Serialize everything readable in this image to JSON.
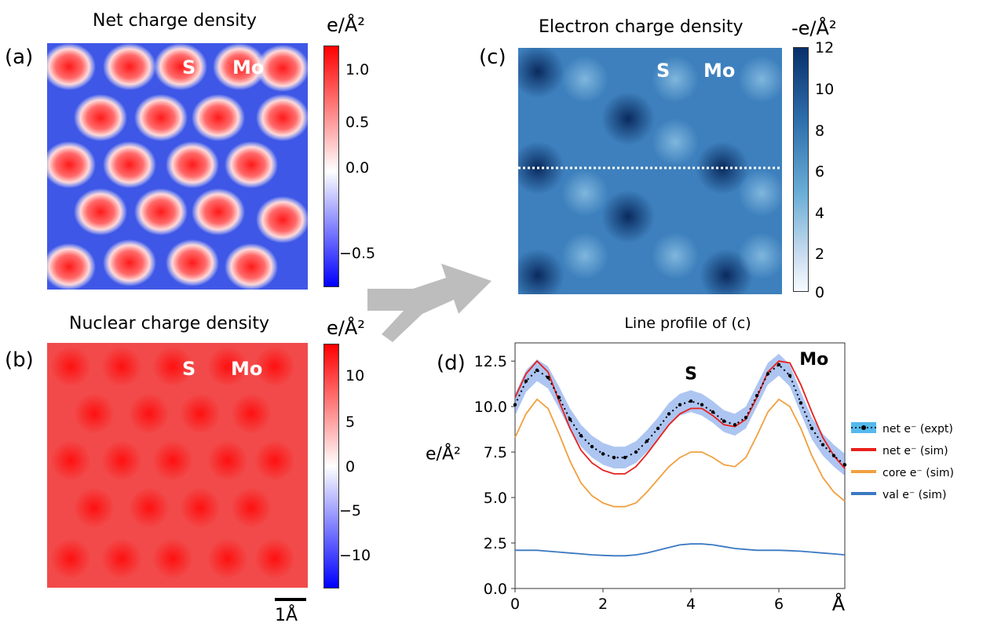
{
  "panels": {
    "a": {
      "label": "(a)",
      "title": "Net charge density",
      "unit": "e/Å²",
      "colorbar_ticks": [
        "1.0",
        "0.5",
        "0.0",
        "−0.5"
      ],
      "annotations": [
        "S",
        "Mo"
      ],
      "colormap": [
        "#0000ff",
        "#ffffff",
        "#ff0000"
      ]
    },
    "b": {
      "label": "(b)",
      "title": "Nuclear charge density",
      "unit": "e/Å²",
      "colorbar_ticks": [
        "10",
        "5",
        "0",
        "−5",
        "−10"
      ],
      "annotations": [
        "S",
        "Mo"
      ],
      "scalebar": "1Å"
    },
    "c": {
      "label": "(c)",
      "title": "Electron charge density",
      "unit": "-e/Å²",
      "colorbar_ticks": [
        "12",
        "10",
        "8",
        "6",
        "4",
        "2",
        "0"
      ],
      "annotations": [
        "S",
        "Mo"
      ],
      "colormap": [
        "#f7fbff",
        "#6baed6",
        "#08306b"
      ]
    },
    "d": {
      "label": "(d)",
      "title": "Line profile of (c)",
      "annotations": [
        "S",
        "Mo"
      ]
    }
  },
  "chart_data": {
    "type": "line",
    "title": "Line profile of (c)",
    "xlabel": "Å",
    "ylabel": "e/Å²",
    "xlim": [
      0,
      7.5
    ],
    "ylim": [
      0,
      13.5
    ],
    "xticks": [
      "0",
      "2",
      "4",
      "6"
    ],
    "yticks": [
      "0.0",
      "2.5",
      "5.0",
      "7.5",
      "10.0",
      "12.5"
    ],
    "x": [
      0,
      0.25,
      0.5,
      0.75,
      1.0,
      1.25,
      1.5,
      1.75,
      2.0,
      2.25,
      2.5,
      2.75,
      3.0,
      3.25,
      3.5,
      3.75,
      4.0,
      4.25,
      4.5,
      4.75,
      5.0,
      5.25,
      5.5,
      5.75,
      6.0,
      6.25,
      6.5,
      6.75,
      7.0,
      7.25,
      7.5
    ],
    "series": [
      {
        "name": "net e⁻ (expt)",
        "color": "#000000",
        "band_color": "#4a7fe0",
        "values": [
          10.1,
          11.4,
          12.0,
          11.6,
          10.5,
          9.3,
          8.4,
          7.8,
          7.4,
          7.2,
          7.2,
          7.5,
          8.1,
          8.8,
          9.6,
          10.1,
          10.3,
          10.1,
          9.7,
          9.2,
          9.0,
          9.4,
          10.6,
          11.8,
          12.3,
          11.7,
          10.2,
          8.8,
          7.9,
          7.3,
          6.8
        ],
        "band_halfwidth": 0.6
      },
      {
        "name": "net e⁻ (sim)",
        "color": "#e8201c",
        "values": [
          10.5,
          11.8,
          12.5,
          11.9,
          10.3,
          8.8,
          7.6,
          6.9,
          6.5,
          6.3,
          6.3,
          6.7,
          7.4,
          8.2,
          9.0,
          9.6,
          9.9,
          9.9,
          9.5,
          9.0,
          8.9,
          9.3,
          10.5,
          11.9,
          12.5,
          12.4,
          11.2,
          9.7,
          8.3,
          7.3,
          6.6
        ]
      },
      {
        "name": "core e⁻ (sim)",
        "color": "#f0a040",
        "values": [
          8.3,
          9.6,
          10.4,
          9.9,
          8.5,
          7.0,
          5.8,
          5.1,
          4.7,
          4.5,
          4.5,
          4.7,
          5.3,
          6.0,
          6.7,
          7.2,
          7.5,
          7.5,
          7.2,
          6.8,
          6.7,
          7.2,
          8.4,
          9.7,
          10.4,
          10.0,
          8.8,
          7.3,
          6.1,
          5.3,
          4.8
        ]
      },
      {
        "name": "val e⁻ (sim)",
        "color": "#3a78c2",
        "values": [
          2.1,
          2.1,
          2.1,
          2.05,
          2.0,
          1.95,
          1.9,
          1.85,
          1.82,
          1.8,
          1.8,
          1.85,
          1.95,
          2.1,
          2.25,
          2.4,
          2.45,
          2.45,
          2.4,
          2.3,
          2.2,
          2.15,
          2.1,
          2.1,
          2.1,
          2.08,
          2.05,
          2.0,
          1.95,
          1.9,
          1.85
        ]
      }
    ],
    "annotations": [
      {
        "text": "S",
        "x": 4.0,
        "y": 11.5
      },
      {
        "text": "Mo",
        "x": 6.8,
        "y": 12.3
      }
    ],
    "legend_placement": "right"
  }
}
